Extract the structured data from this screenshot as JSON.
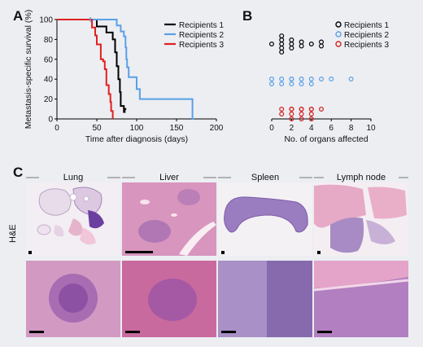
{
  "panels": {
    "a": "A",
    "b": "B",
    "c": "C"
  },
  "chart_data": [
    {
      "type": "line",
      "ylabel": "Metastasis-specific survival (%)",
      "xlabel": "Time after diagnosis (days)",
      "xlim": [
        0,
        200
      ],
      "ylim": [
        0,
        100
      ],
      "xticks": [
        "0",
        "50",
        "100",
        "150",
        "200"
      ],
      "yticks": [
        "0",
        "20",
        "40",
        "60",
        "80",
        "100"
      ],
      "legend_position": "top-right",
      "series": [
        {
          "name": "Recipients 1",
          "color": "#000000",
          "steps": [
            [
              0,
              100
            ],
            [
              50,
              100
            ],
            [
              50,
              93
            ],
            [
              62,
              93
            ],
            [
              62,
              87
            ],
            [
              70,
              87
            ],
            [
              70,
              80
            ],
            [
              73,
              80
            ],
            [
              73,
              67
            ],
            [
              75,
              67
            ],
            [
              75,
              53
            ],
            [
              77,
              53
            ],
            [
              77,
              40
            ],
            [
              79,
              40
            ],
            [
              79,
              27
            ],
            [
              80,
              27
            ],
            [
              80,
              13
            ],
            [
              84,
              13
            ],
            [
              84,
              7
            ],
            [
              85,
              7
            ],
            [
              85,
              10
            ],
            [
              87,
              10
            ]
          ]
        },
        {
          "name": "Recipients 2",
          "color": "#5aa0e6",
          "steps": [
            [
              0,
              100
            ],
            [
              42,
              100
            ],
            [
              42,
              100
            ],
            [
              75,
              100
            ],
            [
              75,
              94
            ],
            [
              80,
              94
            ],
            [
              80,
              88
            ],
            [
              84,
              88
            ],
            [
              84,
              83
            ],
            [
              86,
              83
            ],
            [
              86,
              72
            ],
            [
              87,
              72
            ],
            [
              87,
              60
            ],
            [
              88,
              60
            ],
            [
              88,
              52
            ],
            [
              90,
              52
            ],
            [
              90,
              42
            ],
            [
              100,
              42
            ],
            [
              100,
              30
            ],
            [
              104,
              30
            ],
            [
              104,
              20
            ],
            [
              170,
              20
            ],
            [
              170,
              0
            ],
            [
              172,
              0
            ]
          ]
        },
        {
          "name": "Recipients 3",
          "color": "#e02020",
          "steps": [
            [
              0,
              100
            ],
            [
              44,
              100
            ],
            [
              44,
              92
            ],
            [
              48,
              92
            ],
            [
              48,
              84
            ],
            [
              50,
              84
            ],
            [
              50,
              75
            ],
            [
              55,
              75
            ],
            [
              55,
              60
            ],
            [
              58,
              60
            ],
            [
              58,
              58
            ],
            [
              60,
              58
            ],
            [
              60,
              50
            ],
            [
              62,
              50
            ],
            [
              62,
              34
            ],
            [
              65,
              34
            ],
            [
              65,
              25
            ],
            [
              67,
              25
            ],
            [
              67,
              17
            ],
            [
              68,
              17
            ],
            [
              68,
              8
            ],
            [
              70,
              8
            ],
            [
              70,
              0
            ]
          ]
        }
      ],
      "censor_marks": {
        "Recipients 2": [
          [
            42,
            100
          ]
        ]
      }
    },
    {
      "type": "scatter",
      "xlabel": "No. of organs affected",
      "xlim": [
        0,
        10
      ],
      "xticks": [
        "0",
        "2",
        "4",
        "6",
        "8",
        "10"
      ],
      "legend_position": "top-right",
      "series": [
        {
          "name": "Recipients 1",
          "color": "#000000",
          "marker": "open-circle",
          "x": [
            0,
            1,
            1,
            1,
            1,
            1,
            2,
            2,
            2,
            3,
            3,
            4,
            5,
            5
          ]
        },
        {
          "name": "Recipients 2",
          "color": "#5aa0e6",
          "marker": "open-circle",
          "x": [
            0,
            0,
            1,
            1,
            2,
            2,
            2,
            3,
            3,
            4,
            4,
            5,
            6,
            8
          ]
        },
        {
          "name": "Recipients 3",
          "color": "#d42020",
          "marker": "open-circle",
          "x": [
            1,
            2,
            2,
            2,
            3,
            3,
            3,
            4,
            4,
            4,
            5,
            1,
            2,
            3,
            4
          ]
        }
      ]
    }
  ],
  "histology": {
    "row_label": "H&E",
    "columns": [
      {
        "title": "Lung"
      },
      {
        "title": "Liver"
      },
      {
        "title": "Spleen"
      },
      {
        "title": "Lymph node"
      }
    ]
  }
}
